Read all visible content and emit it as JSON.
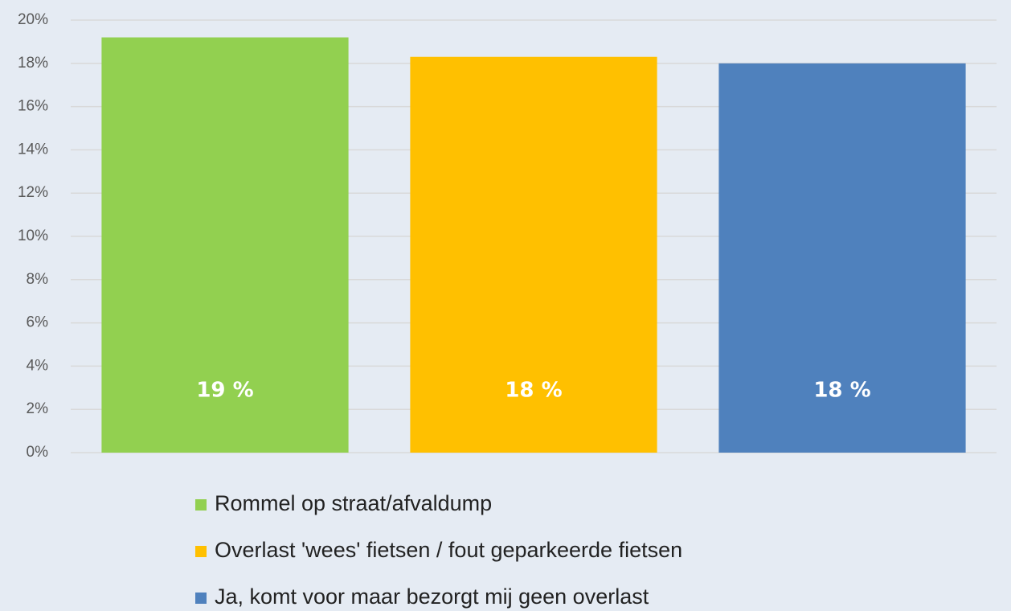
{
  "chart_data": {
    "type": "bar",
    "categories": [
      null
    ],
    "series": [
      {
        "name": "Rommel op straat/afvaldump",
        "color": "#92d050",
        "values": [
          19.2
        ],
        "value_labels": [
          "19 %"
        ]
      },
      {
        "name": "Overlast 'wees' fietsen / fout geparkeerde fietsen",
        "color": "#ffc000",
        "values": [
          18.3
        ],
        "value_labels": [
          "18 %"
        ]
      },
      {
        "name": "Ja, komt voor maar bezorgt mij geen overlast",
        "color": "#4f81bd",
        "values": [
          18.0
        ],
        "value_labels": [
          "18 %"
        ]
      }
    ],
    "ylim": [
      0,
      20
    ],
    "yticks": [
      {
        "value": 0,
        "label": "0%"
      },
      {
        "value": 2,
        "label": "2%"
      },
      {
        "value": 4,
        "label": "4%"
      },
      {
        "value": 6,
        "label": "6%"
      },
      {
        "value": 8,
        "label": "8%"
      },
      {
        "value": 10,
        "label": "10%"
      },
      {
        "value": 12,
        "label": "12%"
      },
      {
        "value": 14,
        "label": "14%"
      },
      {
        "value": 16,
        "label": "16%"
      },
      {
        "value": 18,
        "label": "18%"
      },
      {
        "value": 20,
        "label": "20%"
      }
    ],
    "grid": true,
    "legend": "bottom"
  }
}
